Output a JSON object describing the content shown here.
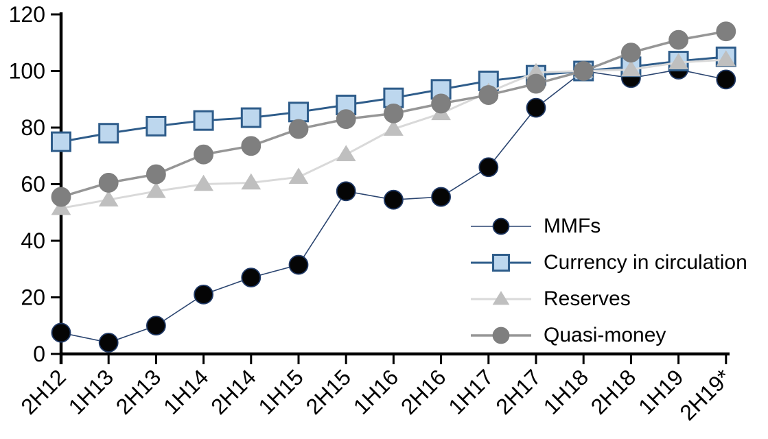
{
  "chart_data": {
    "type": "line",
    "title": "",
    "xlabel": "",
    "ylabel": "",
    "ylim": [
      0,
      120
    ],
    "yticks": [
      0,
      20,
      40,
      60,
      80,
      100,
      120
    ],
    "grid": false,
    "legend_position": "center-right",
    "axis_color": "#000000",
    "categories": [
      "2H12",
      "1H13",
      "2H13",
      "1H14",
      "2H14",
      "1H15",
      "2H15",
      "1H16",
      "2H16",
      "1H17",
      "2H17",
      "1H18",
      "2H18",
      "1H19",
      "2H19*"
    ],
    "series": [
      {
        "name": "MMFs",
        "marker": "circle",
        "marker_fill": "#050505",
        "marker_stroke": "#1F3864",
        "line_color": "#2B4570",
        "line_width": 1.6,
        "marker_size": 27,
        "values": [
          7.5,
          4,
          10,
          21,
          27,
          31.5,
          57.5,
          54.5,
          55.5,
          66,
          87,
          100,
          97.5,
          100.5,
          97
        ]
      },
      {
        "name": "Currency in circulation",
        "marker": "square",
        "marker_fill": "#BDD7EE",
        "marker_stroke": "#2E5C8A",
        "line_color": "#2E5C8A",
        "line_width": 3,
        "marker_size": 27,
        "values": [
          75,
          78,
          80.5,
          82.5,
          83.5,
          85.5,
          88,
          90.5,
          93.5,
          96.5,
          98.5,
          100,
          101.5,
          103.5,
          105
        ]
      },
      {
        "name": "Reserves",
        "marker": "triangle",
        "marker_fill": "#BFBFBF",
        "marker_stroke": "#BFBFBF",
        "line_color": "#D9D9D9",
        "line_width": 3,
        "marker_size": 27,
        "values": [
          51.5,
          54.5,
          57.5,
          60,
          60.5,
          62.5,
          70.5,
          79.5,
          85,
          92.5,
          99.5,
          100,
          100.5,
          103,
          104
        ]
      },
      {
        "name": "Quasi-money",
        "marker": "circle",
        "marker_fill": "#7F7F7F",
        "marker_stroke": "#7F7F7F",
        "line_color": "#969696",
        "line_width": 3.5,
        "marker_size": 27,
        "values": [
          55.5,
          60.5,
          63.5,
          70.5,
          73.5,
          79.5,
          83,
          85,
          88.5,
          91.5,
          95.5,
          100,
          106.5,
          111,
          114
        ]
      }
    ]
  }
}
